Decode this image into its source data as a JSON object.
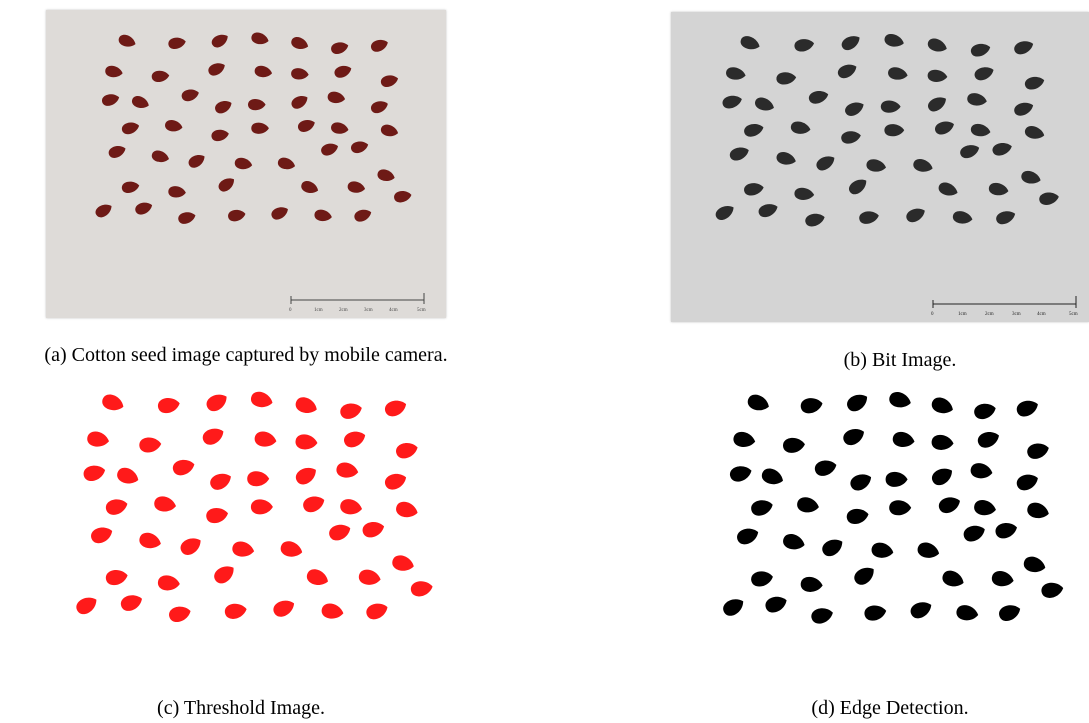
{
  "figure": {
    "panels": [
      {
        "id": "a",
        "caption": "(a) Cotton seed image captured by mobile camera.",
        "background": "#dedbd8",
        "seed_color": "#6e1a16",
        "scale_ticks": [
          "0",
          "1cm",
          "2cm",
          "3cm",
          "4cm",
          "5cm"
        ]
      },
      {
        "id": "b",
        "caption": "(b) Bit Image.",
        "background": "#d4d4d4",
        "seed_color": "#2b2b2b",
        "scale_ticks": [
          "0",
          "1cm",
          "2cm",
          "3cm",
          "4cm",
          "5cm"
        ]
      },
      {
        "id": "c",
        "caption": "(c) Threshold Image.",
        "background": "#ffffff",
        "seed_color": "#ff1a1a"
      },
      {
        "id": "d",
        "caption": "(d) Edge Detection.",
        "background": "#ffffff",
        "seed_color": "#000000"
      }
    ]
  }
}
